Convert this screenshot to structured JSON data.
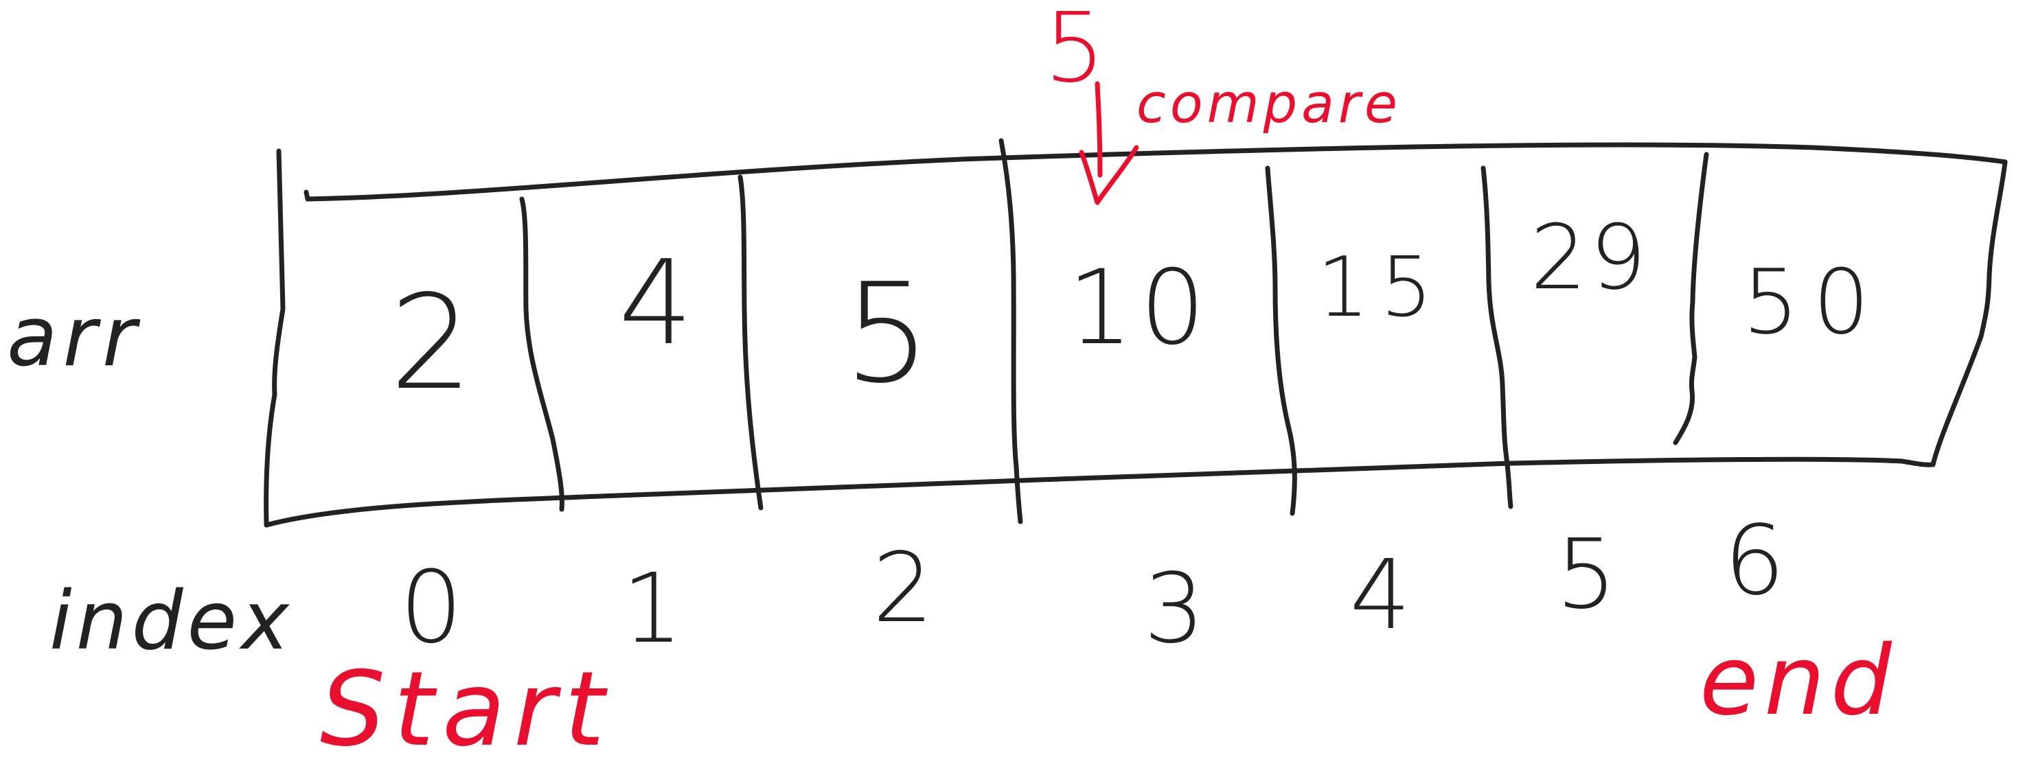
{
  "colors": {
    "ink": "#222222",
    "accent": "#e8102e",
    "background": "#ffffff"
  },
  "labels": {
    "array_name": "arr",
    "index_row": "index"
  },
  "cells": [
    {
      "value": "2",
      "index": "0"
    },
    {
      "value": "4",
      "index": "1"
    },
    {
      "value": "5",
      "index": "2"
    },
    {
      "value": "10",
      "index": "3"
    },
    {
      "value": "15",
      "index": "4"
    },
    {
      "value": "29",
      "index": "5"
    },
    {
      "value": "50",
      "index": "6"
    }
  ],
  "search": {
    "target": "5",
    "action": "compare",
    "compare_cell_index": 3
  },
  "pointers": {
    "start": {
      "label": "Start",
      "cell_index": 0
    },
    "end": {
      "label": "end",
      "cell_index": 6
    }
  }
}
